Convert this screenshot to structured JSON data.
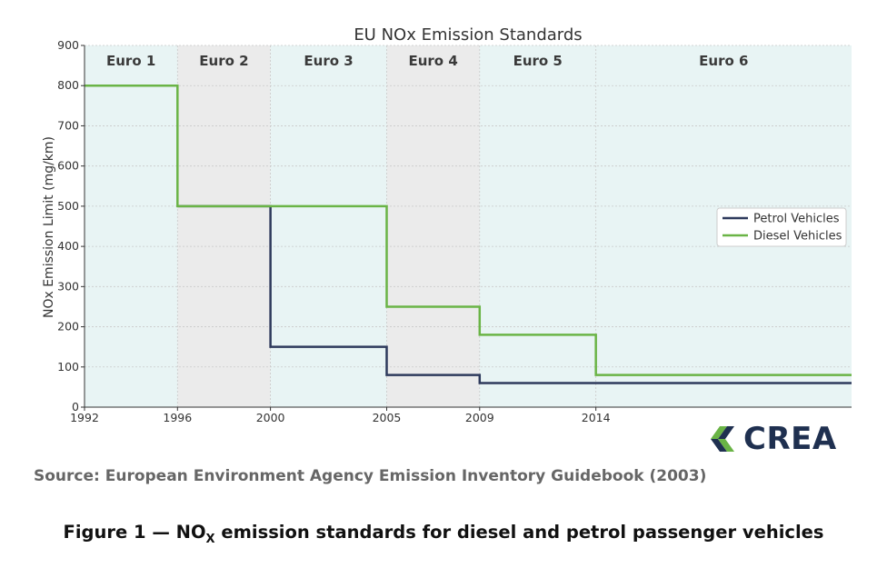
{
  "chart_data": {
    "type": "line",
    "step": "post",
    "title": "EU NOx Emission Standards",
    "xlabel": "",
    "ylabel": "NOx Emission Limit (mg/km)",
    "xlim": [
      1992,
      2025
    ],
    "ylim": [
      0,
      900
    ],
    "xticks": [
      1992,
      1996,
      2000,
      2005,
      2009,
      2014
    ],
    "yticks": [
      0,
      100,
      200,
      300,
      400,
      500,
      600,
      700,
      800,
      900
    ],
    "grid": true,
    "legend_position": "center-right",
    "eras": [
      {
        "label": "Euro 1",
        "start": 1992,
        "end": 1996,
        "color": "#e8f4f4"
      },
      {
        "label": "Euro 2",
        "start": 1996,
        "end": 2000,
        "color": "#ebebeb"
      },
      {
        "label": "Euro 3",
        "start": 2000,
        "end": 2005,
        "color": "#e8f4f4"
      },
      {
        "label": "Euro 4",
        "start": 2005,
        "end": 2009,
        "color": "#ebebeb"
      },
      {
        "label": "Euro 5",
        "start": 2009,
        "end": 2014,
        "color": "#e8f4f4"
      },
      {
        "label": "Euro 6",
        "start": 2014,
        "end": 2025,
        "color": "#e8f4f4"
      }
    ],
    "series": [
      {
        "name": "Petrol Vehicles",
        "color": "#2e3a5c",
        "x": [
          1996,
          2000,
          2005,
          2009,
          2014,
          2025
        ],
        "y": [
          500,
          150,
          80,
          60,
          60,
          60
        ]
      },
      {
        "name": "Diesel Vehicles",
        "color": "#6ab446",
        "x": [
          1992,
          1996,
          2000,
          2005,
          2009,
          2014,
          2025
        ],
        "y": [
          800,
          500,
          500,
          250,
          180,
          80,
          80
        ]
      }
    ]
  },
  "logo": {
    "text": "CREA",
    "colors": [
      "#1f3050",
      "#6ab446"
    ]
  },
  "source": "Source: European Environment Agency Emission Inventory Guidebook (2003)",
  "caption": {
    "prefix": "Figure 1 —  NO",
    "subscript": "X",
    "suffix": " emission standards for diesel and petrol passenger vehicles"
  }
}
